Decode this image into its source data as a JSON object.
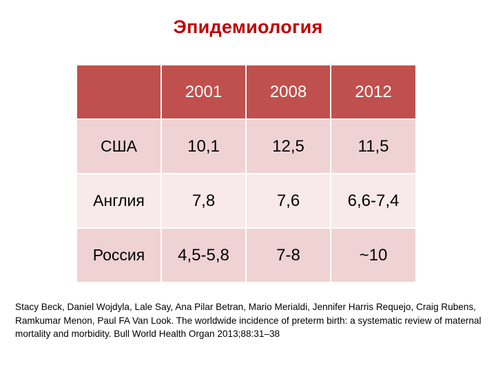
{
  "title": "Эпидемиология",
  "table": {
    "columns": [
      "",
      "2001",
      "2008",
      "2012"
    ],
    "rows": [
      {
        "label": "США",
        "values": [
          "10,1",
          "12,5",
          "11,5"
        ]
      },
      {
        "label": "Англия",
        "values": [
          "7,8",
          "7,6",
          "6,6-7,4"
        ]
      },
      {
        "label": "Россия",
        "values": [
          "4,5-5,8",
          "7-8",
          "~10"
        ]
      }
    ]
  },
  "citation": "Stacy Beck, Daniel Wojdyla, Lale Say, Ana Pilar Betran, Mario Merialdi, Jennifer Harris Requejo, Craig Rubens, Ramkumar Menon, Paul FA Van Look. The worldwide incidence of preterm birth: a systematic review of maternal mortality and morbidity. Bull World Health Organ 2013;88:31–38",
  "colors": {
    "title": "#c00000",
    "header_fill": "#c0504d",
    "row_fill_dark": "#efd3d2",
    "row_fill_light": "#f8eaea"
  }
}
